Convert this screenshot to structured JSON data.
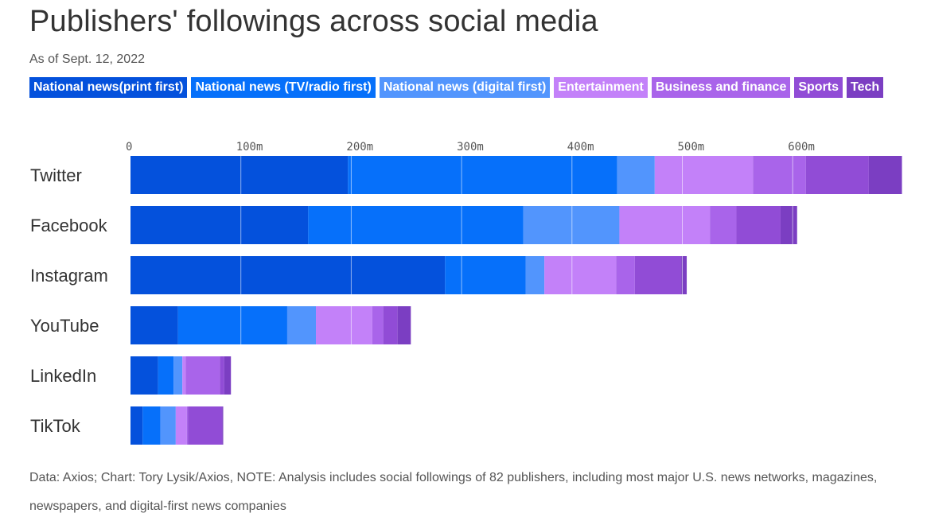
{
  "title": "Publishers' followings across social media",
  "subtitle": "As of Sept. 12, 2022",
  "footnote": "Data: Axios; Chart: Tory Lysik/Axios, NOTE: Analysis includes social followings of 82 publishers, including most major U.S. news networks, magazines, newspapers, and digital-first news companies",
  "colors": {
    "national_print": "#0451dc",
    "national_tv": "#0670fa",
    "national_digital": "#5295fd",
    "entertainment": "#c381f9",
    "business": "#a964ea",
    "sports": "#914cd6",
    "tech": "#7b3ec2",
    "gridline": "#ffffff"
  },
  "chart_data": {
    "type": "bar",
    "orientation": "horizontal",
    "stacked": true,
    "title": "Publishers' followings across social media",
    "subtitle": "As of Sept. 12, 2022",
    "legend_placement": "top",
    "grid": true,
    "xlim": [
      0,
      700
    ],
    "x_ticks": [
      {
        "value": 0,
        "label": "0"
      },
      {
        "value": 100,
        "label": "100m"
      },
      {
        "value": 200,
        "label": "200m"
      },
      {
        "value": 300,
        "label": "300m"
      },
      {
        "value": 400,
        "label": "400m"
      },
      {
        "value": 500,
        "label": "500m"
      },
      {
        "value": 600,
        "label": "600m"
      }
    ],
    "categories": [
      "Twitter",
      "Facebook",
      "Instagram",
      "YouTube",
      "LinkedIn",
      "TikTok"
    ],
    "series": [
      {
        "name": "National news(print first)",
        "color_key": "national_print",
        "values": [
          197,
          161,
          285,
          43,
          25,
          11
        ]
      },
      {
        "name": "National news (TV/radio first)",
        "color_key": "national_tv",
        "values": [
          244,
          195,
          73,
          99,
          14,
          16
        ]
      },
      {
        "name": "National news (digital first)",
        "color_key": "national_digital",
        "values": [
          34,
          87,
          17,
          26,
          8,
          14
        ]
      },
      {
        "name": "Entertainment",
        "color_key": "entertainment",
        "values": [
          89,
          82,
          65,
          51,
          3,
          10
        ]
      },
      {
        "name": "Business and finance",
        "color_key": "business",
        "values": [
          48,
          24,
          17,
          10,
          31,
          1
        ]
      },
      {
        "name": "Sports",
        "color_key": "sports",
        "values": [
          57,
          40,
          42,
          13,
          4,
          31
        ]
      },
      {
        "name": "Tech",
        "color_key": "tech",
        "values": [
          30,
          15,
          5,
          12,
          6,
          1
        ]
      }
    ]
  }
}
